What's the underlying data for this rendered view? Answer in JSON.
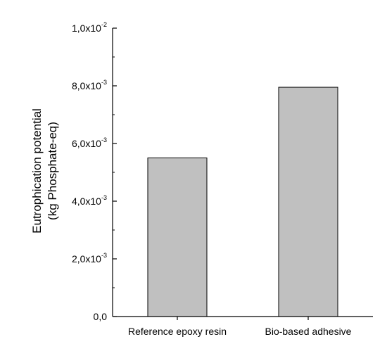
{
  "chart_data": {
    "type": "bar",
    "categories": [
      "Reference epoxy resin",
      "Bio-based adhesive"
    ],
    "values": [
      0.0055,
      0.00795
    ],
    "title": "",
    "xlabel": "",
    "ylabel_line1": "Eutrophication potential",
    "ylabel_line2": "(kg Phosphate-eq)",
    "ylim": [
      0,
      0.01
    ],
    "yticks": [
      {
        "value": 0,
        "mantissa": "0,0",
        "exp": ""
      },
      {
        "value": 0.002,
        "mantissa": "2,0x10",
        "exp": "-3"
      },
      {
        "value": 0.004,
        "mantissa": "4,0x10",
        "exp": "-3"
      },
      {
        "value": 0.006,
        "mantissa": "6,0x10",
        "exp": "-3"
      },
      {
        "value": 0.008,
        "mantissa": "8,0x10",
        "exp": "-3"
      },
      {
        "value": 0.01,
        "mantissa": "1,0x10",
        "exp": "-2"
      }
    ],
    "bar_color": "#c0c0c0",
    "bar_edge_color": "#000000",
    "grid": false,
    "legend": "none"
  }
}
